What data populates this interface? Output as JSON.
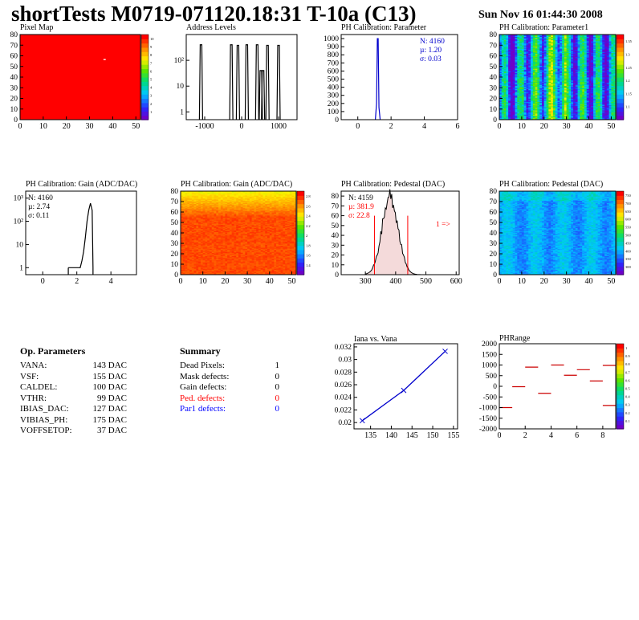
{
  "header": {
    "title": "shortTests M0719-071120.18:31 T-10a (C13)",
    "date": "Sun Nov 16 01:44:30 2008"
  },
  "panels": {
    "pixel_map": {
      "title": "Pixel Map",
      "x_ticks": [
        "0",
        "10",
        "20",
        "30",
        "40",
        "50"
      ],
      "y_ticks": [
        "0",
        "10",
        "20",
        "30",
        "40",
        "50",
        "60",
        "70",
        "80"
      ],
      "z_ticks": [
        "1",
        "2",
        "3",
        "4",
        "5",
        "6",
        "7",
        "8",
        "9",
        "10"
      ]
    },
    "address_levels": {
      "title": "Address Levels",
      "x_ticks": [
        "-1000",
        "0",
        "1000"
      ],
      "y_ticks": [
        "1",
        "10",
        "10²"
      ]
    },
    "ph_param": {
      "title": "PH Calibration: Parameter",
      "x_ticks": [
        "0",
        "2",
        "4",
        "6"
      ],
      "y_ticks": [
        "0",
        "100",
        "200",
        "300",
        "400",
        "500",
        "600",
        "700",
        "800",
        "900",
        "1000"
      ],
      "stats": [
        "N: 4160",
        "µ: 1.20",
        "σ: 0.03"
      ]
    },
    "ph_param1": {
      "title": "PH Calibration: Parameter1",
      "x_ticks": [
        "0",
        "10",
        "20",
        "30",
        "40",
        "50"
      ],
      "y_ticks": [
        "0",
        "10",
        "20",
        "30",
        "40",
        "50",
        "60",
        "70",
        "80"
      ],
      "z_ticks": [
        "1.1",
        "1.15",
        "1.2",
        "1.25",
        "1.3",
        "1.35"
      ]
    },
    "gain_hist": {
      "title": "PH Calibration: Gain (ADC/DAC)",
      "x_ticks": [
        "0",
        "2",
        "4"
      ],
      "y_ticks": [
        "1",
        "10",
        "10²",
        "10³"
      ],
      "stats": [
        "N: 4160",
        "µ: 2.74",
        "σ: 0.11"
      ]
    },
    "gain_map": {
      "title": "PH Calibration: Gain (ADC/DAC)",
      "x_ticks": [
        "0",
        "10",
        "20",
        "30",
        "40",
        "50"
      ],
      "y_ticks": [
        "0",
        "10",
        "20",
        "30",
        "40",
        "50",
        "60",
        "70",
        "80"
      ],
      "z_ticks": [
        "1.4",
        "1.6",
        "1.8",
        "2",
        "2.2",
        "2.4",
        "2.6",
        "2.8"
      ]
    },
    "ped_hist": {
      "title": "PH Calibration: Pedestal (DAC)",
      "x_ticks": [
        "300",
        "400",
        "500",
        "600"
      ],
      "y_ticks": [
        "0",
        "10",
        "20",
        "30",
        "40",
        "50",
        "60",
        "70",
        "80"
      ],
      "stats": [
        "N: 4159",
        "µ: 381.9",
        "σ: 22.8"
      ],
      "overflow_label": "1 =>"
    },
    "ped_map": {
      "title": "PH Calibration: Pedestal (DAC)",
      "x_ticks": [
        "0",
        "10",
        "20",
        "30",
        "40",
        "50"
      ],
      "y_ticks": [
        "0",
        "10",
        "20",
        "30",
        "40",
        "50",
        "60",
        "70",
        "80"
      ],
      "z_ticks": [
        "300",
        "350",
        "400",
        "450",
        "500",
        "550",
        "600",
        "650",
        "700",
        "750"
      ]
    },
    "iana": {
      "title": "Iana vs. Vana",
      "x_ticks": [
        "135",
        "140",
        "145",
        "150",
        "155"
      ],
      "y_ticks": [
        "0.02",
        "0.022",
        "0.024",
        "0.026",
        "0.028",
        "0.03",
        "0.032"
      ]
    },
    "phrange": {
      "title": "PHRange",
      "x_ticks": [
        "0",
        "2",
        "4",
        "6",
        "8"
      ],
      "y_ticks": [
        "-2000",
        "-1500",
        "-1000",
        "-500",
        "0",
        "500",
        "1000",
        "1500",
        "2000"
      ],
      "z_ticks": [
        "0.1",
        "0.2",
        "0.3",
        "0.4",
        "0.5",
        "0.6",
        "0.7",
        "0.8",
        "0.9",
        "1"
      ]
    }
  },
  "op_params": {
    "title": "Op. Parameters",
    "rows": [
      {
        "name": "VANA:",
        "value": "143 DAC"
      },
      {
        "name": "VSF:",
        "value": "155 DAC"
      },
      {
        "name": "CALDEL:",
        "value": "100 DAC"
      },
      {
        "name": "VTHR:",
        "value": "99 DAC"
      },
      {
        "name": "IBIAS_DAC:",
        "value": "127 DAC"
      },
      {
        "name": "VIBIAS_PH:",
        "value": "175 DAC"
      },
      {
        "name": "VOFFSETOP:",
        "value": "37 DAC"
      }
    ]
  },
  "summary": {
    "title": "Summary",
    "rows": [
      {
        "name": "Dead Pixels:",
        "value": "1",
        "color": "#000000"
      },
      {
        "name": "Mask defects:",
        "value": "0",
        "color": "#000000"
      },
      {
        "name": "Gain defects:",
        "value": "0",
        "color": "#000000"
      },
      {
        "name": "Ped. defects:",
        "value": "0",
        "color": "#ff0000"
      },
      {
        "name": "Par1 defects:",
        "value": "0",
        "color": "#0000ff"
      }
    ]
  },
  "chart_data": [
    {
      "id": "pixel_map",
      "type": "heatmap",
      "title": "Pixel Map",
      "xlim": [
        0,
        52
      ],
      "ylim": [
        0,
        80
      ],
      "zlim": [
        0,
        10
      ],
      "fill_value": 10,
      "special": [
        {
          "x": 36,
          "y": 56,
          "value": 0
        }
      ]
    },
    {
      "id": "address_levels",
      "type": "bar",
      "title": "Address Levels",
      "xlim": [
        -1500,
        1500
      ],
      "log_y": true,
      "ylim": [
        0.5,
        1000
      ],
      "peaks": [
        {
          "x": -1100,
          "y": 400
        },
        {
          "x": -280,
          "y": 400
        },
        {
          "x": -100,
          "y": 380
        },
        {
          "x": 140,
          "y": 400
        },
        {
          "x": 420,
          "y": 400
        },
        {
          "x": 520,
          "y": 40
        },
        {
          "x": 580,
          "y": 40
        },
        {
          "x": 700,
          "y": 380
        },
        {
          "x": 1000,
          "y": 380
        }
      ]
    },
    {
      "id": "ph_param",
      "type": "bar",
      "title": "PH Calibration: Parameter",
      "xlim": [
        -1,
        6
      ],
      "ylim": [
        0,
        1050
      ],
      "mean": 1.2,
      "sigma": 0.03,
      "peak": 1000
    },
    {
      "id": "ph_param1",
      "type": "heatmap",
      "title": "PH Calibration: Parameter1",
      "xlim": [
        0,
        52
      ],
      "ylim": [
        0,
        80
      ],
      "zlim": [
        1.05,
        1.38
      ]
    },
    {
      "id": "gain_hist",
      "type": "bar",
      "title": "PH Calibration: Gain (ADC/DAC)",
      "xlim": [
        -1,
        5.5
      ],
      "log_y": true,
      "ylim": [
        0.5,
        2000
      ],
      "points": [
        {
          "x": 1.5,
          "y": 1
        },
        {
          "x": 2.2,
          "y": 1
        },
        {
          "x": 2.3,
          "y": 2
        },
        {
          "x": 2.4,
          "y": 5
        },
        {
          "x": 2.5,
          "y": 20
        },
        {
          "x": 2.6,
          "y": 100
        },
        {
          "x": 2.7,
          "y": 300
        },
        {
          "x": 2.8,
          "y": 600
        },
        {
          "x": 2.9,
          "y": 300
        },
        {
          "x": 2.95,
          "y": 1
        }
      ]
    },
    {
      "id": "gain_map",
      "type": "heatmap",
      "title": "PH Calibration: Gain (ADC/DAC)",
      "xlim": [
        0,
        52
      ],
      "ylim": [
        0,
        80
      ],
      "zlim": [
        1.3,
        2.9
      ]
    },
    {
      "id": "ped_hist",
      "type": "bar",
      "title": "PH Calibration: Pedestal (DAC)",
      "xlim": [
        220,
        610
      ],
      "ylim": [
        0,
        85
      ],
      "mean": 381.9,
      "sigma": 22.8,
      "peak": 80,
      "cuts": [
        330,
        440
      ]
    },
    {
      "id": "ped_map",
      "type": "heatmap",
      "title": "PH Calibration: Pedestal (DAC)",
      "xlim": [
        0,
        52
      ],
      "ylim": [
        0,
        80
      ],
      "zlim": [
        280,
        770
      ]
    },
    {
      "id": "iana",
      "type": "line",
      "title": "Iana vs. Vana",
      "xlim": [
        131,
        156
      ],
      "ylim": [
        0.019,
        0.0325
      ],
      "x": [
        133,
        143,
        153
      ],
      "y": [
        0.0203,
        0.0251,
        0.0313
      ]
    },
    {
      "id": "phrange",
      "type": "scatter",
      "title": "PHRange",
      "xlim": [
        0,
        9
      ],
      "ylim": [
        -2000,
        2000
      ],
      "segments": [
        {
          "x": 0.5,
          "y": -1000
        },
        {
          "x": 1.5,
          "y": -20
        },
        {
          "x": 2.5,
          "y": 900
        },
        {
          "x": 3.5,
          "y": -330
        },
        {
          "x": 4.5,
          "y": 1000
        },
        {
          "x": 5.5,
          "y": 520
        },
        {
          "x": 6.5,
          "y": 780
        },
        {
          "x": 7.5,
          "y": 250
        },
        {
          "x": 8.5,
          "y": 980
        },
        {
          "x": 8.5,
          "y": -900
        }
      ]
    }
  ]
}
